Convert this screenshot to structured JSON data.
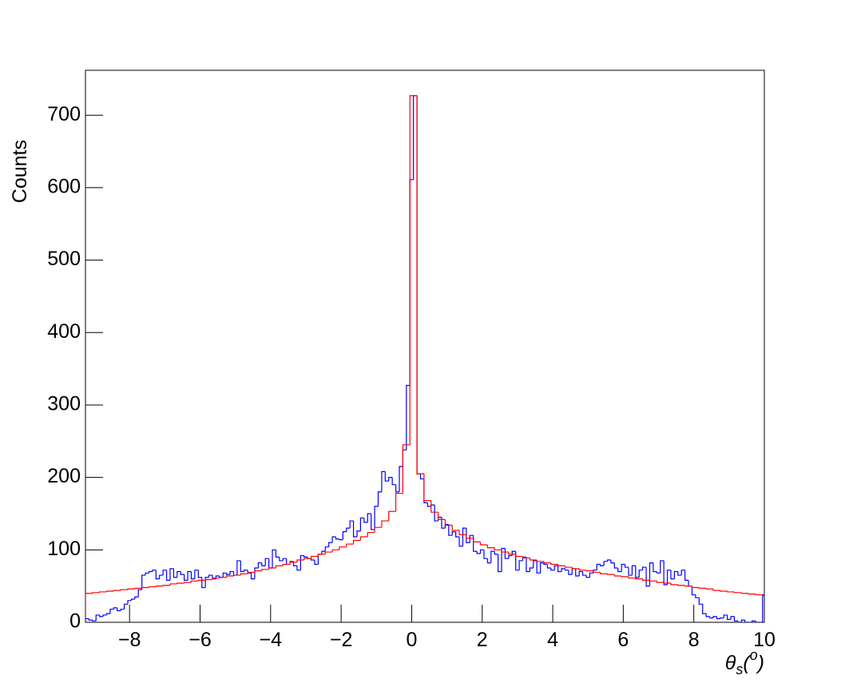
{
  "chart_data": {
    "type": "histogram",
    "ylabel": "Counts",
    "xlabel_parts": [
      "θ",
      "s",
      "(",
      "o",
      ")"
    ],
    "xlim": [
      -9.25,
      10
    ],
    "ylim": [
      0,
      762
    ],
    "xticks": [
      {
        "value": -8,
        "label": "−8"
      },
      {
        "value": -6,
        "label": "−6"
      },
      {
        "value": -4,
        "label": "−4"
      },
      {
        "value": -2,
        "label": "−2"
      },
      0,
      2,
      4,
      6,
      8,
      10
    ],
    "yticks": [
      0,
      100,
      200,
      300,
      400,
      500,
      600,
      700
    ],
    "grid": false,
    "series": [
      {
        "color": "#0000ff",
        "bins": [
          -9.25,
          -9.15,
          -9.05,
          -8.95,
          -8.85,
          -8.75,
          -8.65,
          -8.55,
          -8.45,
          -8.35,
          -8.25,
          -8.15,
          -8.05,
          -7.95,
          -7.85,
          -7.75,
          -7.65,
          -7.55,
          -7.45,
          -7.35,
          -7.25,
          -7.15,
          -7.05,
          -6.95,
          -6.85,
          -6.75,
          -6.65,
          -6.55,
          -6.45,
          -6.35,
          -6.25,
          -6.15,
          -6.05,
          -5.95,
          -5.85,
          -5.75,
          -5.65,
          -5.55,
          -5.45,
          -5.35,
          -5.25,
          -5.15,
          -5.05,
          -4.95,
          -4.85,
          -4.75,
          -4.65,
          -4.55,
          -4.45,
          -4.35,
          -4.25,
          -4.15,
          -4.05,
          -3.95,
          -3.85,
          -3.75,
          -3.65,
          -3.55,
          -3.45,
          -3.35,
          -3.25,
          -3.15,
          -3.05,
          -2.95,
          -2.85,
          -2.75,
          -2.65,
          -2.55,
          -2.45,
          -2.35,
          -2.25,
          -2.15,
          -2.05,
          -1.95,
          -1.85,
          -1.75,
          -1.65,
          -1.55,
          -1.45,
          -1.35,
          -1.25,
          -1.15,
          -1.05,
          -0.95,
          -0.85,
          -0.75,
          -0.65,
          -0.55,
          -0.45,
          -0.35,
          -0.25,
          -0.15,
          -0.05,
          0.05,
          0.15,
          0.25,
          0.35,
          0.45,
          0.55,
          0.65,
          0.75,
          0.85,
          0.95,
          1.05,
          1.15,
          1.25,
          1.35,
          1.45,
          1.55,
          1.65,
          1.75,
          1.85,
          1.95,
          2.05,
          2.15,
          2.25,
          2.35,
          2.45,
          2.55,
          2.65,
          2.75,
          2.85,
          2.95,
          3.05,
          3.15,
          3.25,
          3.35,
          3.45,
          3.55,
          3.65,
          3.75,
          3.85,
          3.95,
          4.05,
          4.15,
          4.25,
          4.35,
          4.45,
          4.55,
          4.65,
          4.75,
          4.85,
          4.95,
          5.05,
          5.15,
          5.25,
          5.35,
          5.45,
          5.55,
          5.65,
          5.75,
          5.85,
          5.95,
          6.05,
          6.15,
          6.25,
          6.35,
          6.45,
          6.55,
          6.65,
          6.75,
          6.85,
          6.95,
          7.05,
          7.15,
          7.25,
          7.35,
          7.45,
          7.55,
          7.65,
          7.75,
          7.85,
          7.95,
          8.05,
          8.15,
          8.25,
          8.35,
          8.45,
          8.55,
          8.65,
          8.75,
          8.85,
          8.95,
          9.05,
          9.15,
          9.25,
          9.35,
          9.45,
          9.55,
          9.65,
          9.75,
          9.85,
          9.95,
          10.05
        ],
        "values": [
          5,
          3,
          2,
          10,
          8,
          10,
          12,
          18,
          20,
          16,
          18,
          25,
          30,
          32,
          35,
          45,
          65,
          68,
          70,
          72,
          60,
          65,
          72,
          58,
          74,
          62,
          70,
          66,
          58,
          70,
          60,
          72,
          62,
          48,
          62,
          65,
          60,
          64,
          62,
          68,
          66,
          70,
          65,
          85,
          70,
          72,
          68,
          60,
          75,
          82,
          78,
          88,
          75,
          100,
          90,
          85,
          88,
          80,
          84,
          78,
          72,
          92,
          90,
          88,
          86,
          80,
          94,
          98,
          104,
          110,
          118,
          115,
          114,
          125,
          130,
          140,
          118,
          126,
          144,
          138,
          150,
          128,
          160,
          180,
          208,
          195,
          200,
          190,
          180,
          215,
          238,
          327,
          611,
          727,
          205,
          198,
          165,
          160,
          162,
          140,
          145,
          130,
          135,
          120,
          125,
          118,
          105,
          130,
          110,
          120,
          98,
          95,
          100,
          88,
          82,
          98,
          94,
          70,
          102,
          88,
          92,
          98,
          72,
          85,
          90,
          70,
          75,
          85,
          68,
          82,
          80,
          75,
          72,
          78,
          70,
          74,
          72,
          66,
          74,
          64,
          70,
          65,
          62,
          68,
          72,
          80,
          78,
          84,
          86,
          82,
          75,
          70,
          80,
          76,
          65,
          78,
          62,
          72,
          76,
          50,
          82,
          70,
          68,
          85,
          52,
          72,
          60,
          70,
          65,
          72,
          58,
          50,
          38,
          34,
          25,
          12,
          8,
          6,
          8,
          5,
          6,
          10,
          4,
          8,
          2,
          0,
          3,
          0,
          0,
          2,
          0,
          0,
          38
        ]
      },
      {
        "color": "#ff0000",
        "bins": [
          -9.25,
          -9.05,
          -8.85,
          -8.65,
          -8.45,
          -8.25,
          -8.05,
          -7.85,
          -7.65,
          -7.45,
          -7.25,
          -7.05,
          -6.85,
          -6.65,
          -6.45,
          -6.25,
          -6.05,
          -5.85,
          -5.65,
          -5.45,
          -5.25,
          -5.05,
          -4.85,
          -4.65,
          -4.45,
          -4.25,
          -4.05,
          -3.85,
          -3.65,
          -3.45,
          -3.25,
          -3.05,
          -2.85,
          -2.65,
          -2.45,
          -2.25,
          -2.05,
          -1.85,
          -1.65,
          -1.45,
          -1.25,
          -1.05,
          -0.85,
          -0.65,
          -0.45,
          -0.25,
          -0.05,
          0.15,
          0.35,
          0.55,
          0.75,
          0.95,
          1.15,
          1.35,
          1.55,
          1.75,
          1.95,
          2.15,
          2.35,
          2.55,
          2.75,
          2.95,
          3.15,
          3.35,
          3.55,
          3.75,
          3.95,
          4.15,
          4.35,
          4.55,
          4.75,
          4.95,
          5.15,
          5.35,
          5.55,
          5.75,
          5.95,
          6.15,
          6.35,
          6.55,
          6.75,
          6.95,
          7.15,
          7.35,
          7.55,
          7.75,
          7.95,
          8.15,
          8.35,
          8.55,
          8.75,
          8.95,
          9.15,
          9.35,
          9.55,
          9.75,
          9.95,
          10.15
        ],
        "values": [
          40,
          41,
          42,
          43,
          44,
          45,
          46,
          47,
          48,
          49,
          50,
          51,
          53,
          54,
          55,
          57,
          58,
          59,
          61,
          62,
          64,
          65,
          67,
          69,
          71,
          73,
          75,
          78,
          80,
          83,
          86,
          88,
          91,
          94,
          97,
          100,
          104,
          108,
          113,
          118,
          124,
          131,
          140,
          153,
          178,
          245,
          727,
          205,
          168,
          152,
          142,
          134,
          127,
          121,
          116,
          111,
          107,
          103,
          100,
          97,
          94,
          91,
          89,
          86,
          84,
          82,
          80,
          78,
          76,
          74,
          72,
          71,
          69,
          67,
          66,
          64,
          63,
          61,
          60,
          58,
          57,
          55,
          54,
          52,
          51,
          50,
          48,
          47,
          46,
          44,
          43,
          42,
          41,
          40,
          39,
          38,
          37
        ]
      }
    ]
  }
}
